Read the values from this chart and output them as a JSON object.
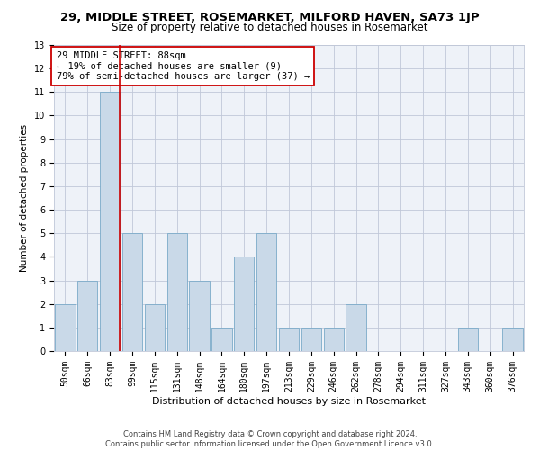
{
  "title1": "29, MIDDLE STREET, ROSEMARKET, MILFORD HAVEN, SA73 1JP",
  "title2": "Size of property relative to detached houses in Rosemarket",
  "xlabel": "Distribution of detached houses by size in Rosemarket",
  "ylabel": "Number of detached properties",
  "categories": [
    "50sqm",
    "66sqm",
    "83sqm",
    "99sqm",
    "115sqm",
    "131sqm",
    "148sqm",
    "164sqm",
    "180sqm",
    "197sqm",
    "213sqm",
    "229sqm",
    "246sqm",
    "262sqm",
    "278sqm",
    "294sqm",
    "311sqm",
    "327sqm",
    "343sqm",
    "360sqm",
    "376sqm"
  ],
  "values": [
    2,
    3,
    11,
    5,
    2,
    5,
    3,
    1,
    4,
    5,
    1,
    1,
    1,
    2,
    0,
    0,
    0,
    0,
    1,
    0,
    1
  ],
  "bar_color": "#c9d9e8",
  "bar_edge_color": "#7aaac8",
  "vline_color": "#cc0000",
  "annotation_text": "29 MIDDLE STREET: 88sqm\n← 19% of detached houses are smaller (9)\n79% of semi-detached houses are larger (37) →",
  "annotation_box_color": "white",
  "annotation_box_edge_color": "#cc0000",
  "grid_color": "#c0c8d8",
  "background_color": "#eef2f8",
  "ylim": [
    0,
    13
  ],
  "yticks": [
    0,
    1,
    2,
    3,
    4,
    5,
    6,
    7,
    8,
    9,
    10,
    11,
    12,
    13
  ],
  "footnote": "Contains HM Land Registry data © Crown copyright and database right 2024.\nContains public sector information licensed under the Open Government Licence v3.0.",
  "title1_fontsize": 9.5,
  "title2_fontsize": 8.5,
  "xlabel_fontsize": 8,
  "ylabel_fontsize": 7.5,
  "tick_fontsize": 7,
  "annotation_fontsize": 7.5,
  "footnote_fontsize": 6
}
